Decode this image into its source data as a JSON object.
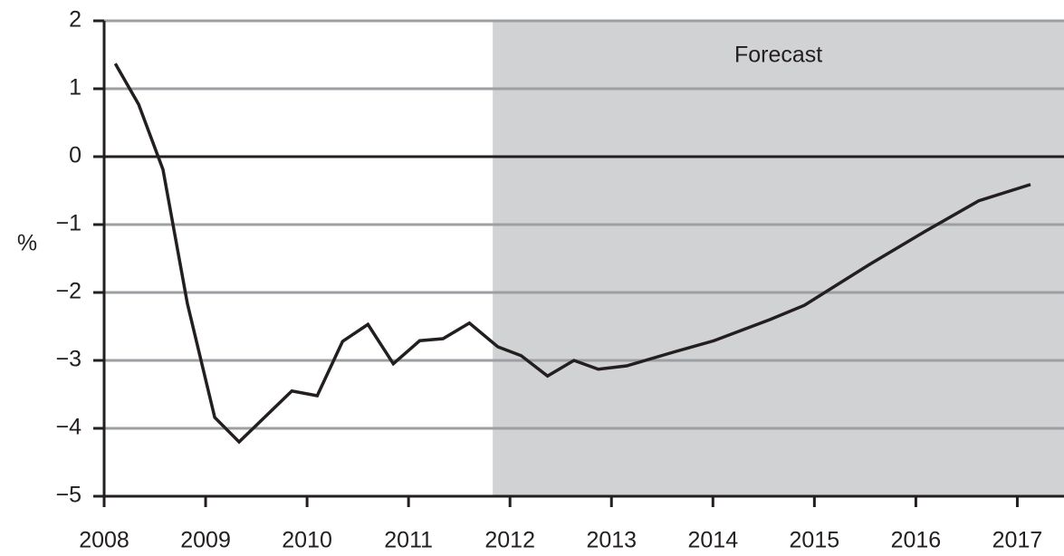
{
  "chart_data": {
    "type": "line",
    "y_label": "%",
    "annotation": "Forecast",
    "forecast_start": 2011.83,
    "shade_color": "#d1d2d4",
    "grid": true,
    "zero_line": true,
    "xlim": [
      2008,
      2017.46
    ],
    "ylim": [
      -5,
      2
    ],
    "xticks": [
      2008,
      2009,
      2010,
      2011,
      2012,
      2013,
      2014,
      2015,
      2016,
      2017
    ],
    "yticks": [
      {
        "value": -5,
        "label": "−5"
      },
      {
        "value": -4,
        "label": "−4"
      },
      {
        "value": -3,
        "label": "−3"
      },
      {
        "value": -2,
        "label": "−2"
      },
      {
        "value": -1,
        "label": "−1"
      },
      0,
      1,
      2
    ],
    "series": [
      {
        "color": "#231f20",
        "x": [
          2008.11,
          2008.34,
          2008.58,
          2008.82,
          2009.09,
          2009.33,
          2009.85,
          2010.1,
          2010.35,
          2010.6,
          2010.85,
          2011.11,
          2011.34,
          2011.6,
          2011.88,
          2012.11,
          2012.37,
          2012.63,
          2012.87,
          2013.15,
          2013.63,
          2014.01,
          2014.56,
          2014.9,
          2015.54,
          2016.08,
          2016.62,
          2017.13
        ],
        "values": [
          1.37,
          0.77,
          -0.19,
          -2.16,
          -3.84,
          -4.2,
          -3.45,
          -3.52,
          -2.72,
          -2.47,
          -3.05,
          -2.71,
          -2.68,
          -2.45,
          -2.8,
          -2.93,
          -3.23,
          -3.0,
          -3.13,
          -3.08,
          -2.87,
          -2.71,
          -2.4,
          -2.19,
          -1.59,
          -1.11,
          -0.65,
          -0.41
        ]
      }
    ]
  }
}
